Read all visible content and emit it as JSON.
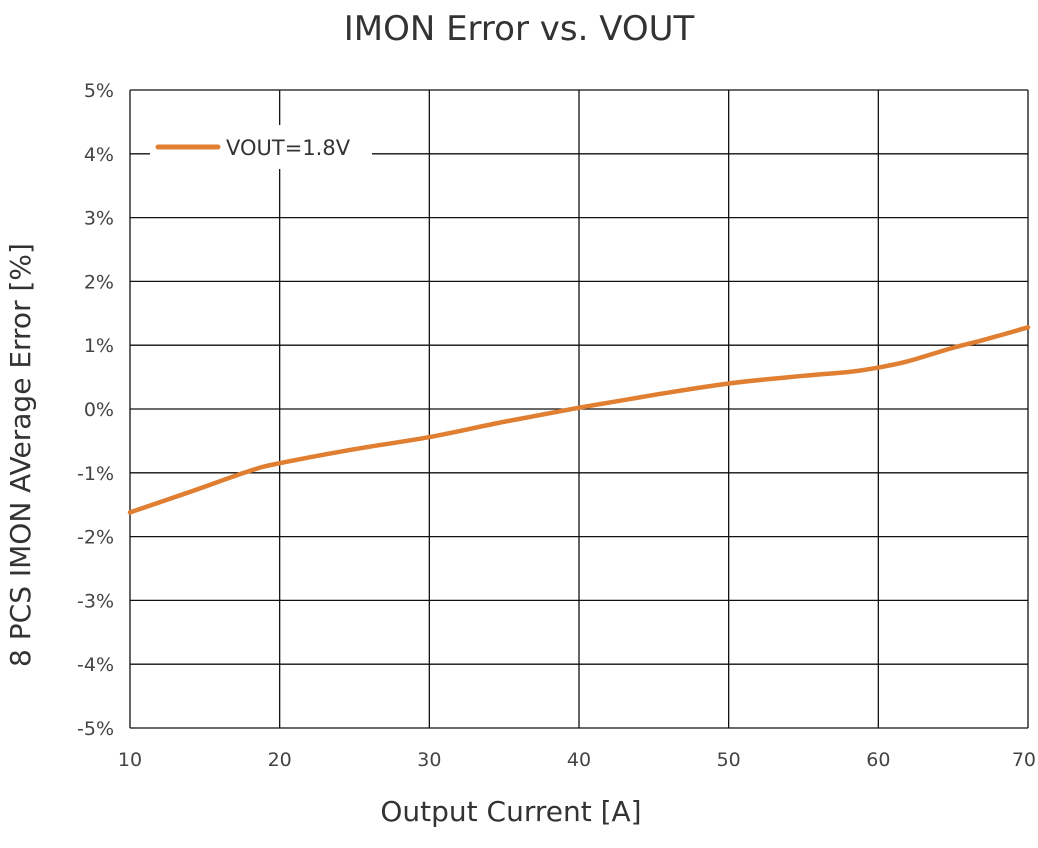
{
  "chart_data": {
    "type": "line",
    "title": "IMON Error vs. VOUT",
    "xlabel": "Output Current [A]",
    "ylabel": "8 PCS IMON AVerage Error [%]",
    "xlim": [
      10,
      70
    ],
    "ylim": [
      -5,
      5
    ],
    "x_ticks": [
      10,
      20,
      30,
      40,
      50,
      60,
      70
    ],
    "x_tick_labels": [
      "10",
      "20",
      "30",
      "40",
      "50",
      "60",
      "70"
    ],
    "y_ticks": [
      5,
      4,
      3,
      2,
      1,
      0,
      -1,
      -2,
      -3,
      -4,
      -5
    ],
    "y_tick_labels": [
      "5%",
      "4%",
      "3%",
      "2%",
      "1%",
      "0%",
      "-1%",
      "-2%",
      "-3%",
      "-4%",
      "-5%"
    ],
    "grid": true,
    "legend_position": "top-left",
    "series": [
      {
        "name": "VOUT=1.8V",
        "color": "#E07F32",
        "x": [
          10,
          14,
          18,
          20,
          25,
          30,
          35,
          40,
          45,
          50,
          55,
          58,
          60,
          62,
          65,
          67,
          70
        ],
        "y": [
          -1.62,
          -1.3,
          -0.97,
          -0.85,
          -0.63,
          -0.44,
          -0.2,
          0.02,
          0.22,
          0.4,
          0.52,
          0.58,
          0.65,
          0.75,
          0.96,
          1.08,
          1.28
        ]
      }
    ]
  }
}
